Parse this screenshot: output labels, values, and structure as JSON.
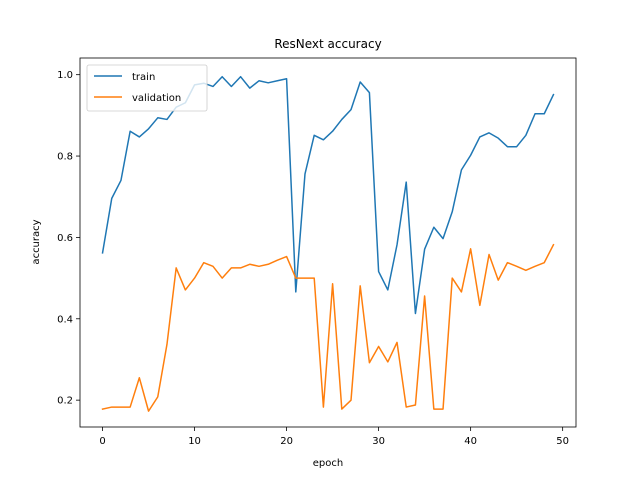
{
  "chart_data": {
    "type": "line",
    "title": "ResNext accuracy",
    "xlabel": "epoch",
    "ylabel": "accuracy",
    "xlim": [
      -2.45,
      51.45
    ],
    "ylim": [
      0.134,
      1.041
    ],
    "xticks": [
      0,
      10,
      20,
      30,
      40,
      50
    ],
    "yticks": [
      0.2,
      0.4,
      0.6,
      0.8,
      1.0
    ],
    "ytick_labels": [
      "0.2",
      "0.4",
      "0.6",
      "0.8",
      "1.0"
    ],
    "grid": false,
    "legend_position": "top-left",
    "x": [
      0,
      1,
      2,
      3,
      4,
      5,
      6,
      7,
      8,
      9,
      10,
      11,
      12,
      13,
      14,
      15,
      16,
      17,
      18,
      19,
      20,
      21,
      22,
      23,
      24,
      25,
      26,
      27,
      28,
      29,
      30,
      31,
      32,
      33,
      34,
      35,
      36,
      37,
      38,
      39,
      40,
      41,
      42,
      43,
      44,
      45,
      46,
      47,
      48,
      49
    ],
    "series": [
      {
        "name": "train",
        "color": "#1f77b4",
        "values": [
          0.562,
          0.696,
          0.74,
          0.861,
          0.847,
          0.867,
          0.894,
          0.89,
          0.92,
          0.931,
          0.975,
          0.979,
          0.971,
          0.995,
          0.971,
          0.995,
          0.967,
          0.985,
          0.98,
          0.985,
          0.99,
          0.466,
          0.756,
          0.851,
          0.84,
          0.861,
          0.89,
          0.914,
          0.982,
          0.956,
          0.516,
          0.471,
          0.582,
          0.736,
          0.413,
          0.571,
          0.625,
          0.597,
          0.663,
          0.766,
          0.802,
          0.847,
          0.857,
          0.844,
          0.823,
          0.823,
          0.851,
          0.904,
          0.904,
          0.951
        ]
      },
      {
        "name": "validation",
        "color": "#ff7f0e",
        "values": [
          0.178,
          0.183,
          0.183,
          0.183,
          0.255,
          0.173,
          0.208,
          0.337,
          0.525,
          0.471,
          0.5,
          0.538,
          0.529,
          0.5,
          0.525,
          0.525,
          0.534,
          0.529,
          0.534,
          0.544,
          0.553,
          0.5,
          0.5,
          0.5,
          0.183,
          0.486,
          0.178,
          0.2,
          0.481,
          0.292,
          0.332,
          0.294,
          0.342,
          0.183,
          0.188,
          0.456,
          0.178,
          0.178,
          0.5,
          0.466,
          0.572,
          0.433,
          0.558,
          0.495,
          0.538,
          0.529,
          0.519,
          0.529,
          0.538,
          0.582
        ]
      }
    ]
  }
}
